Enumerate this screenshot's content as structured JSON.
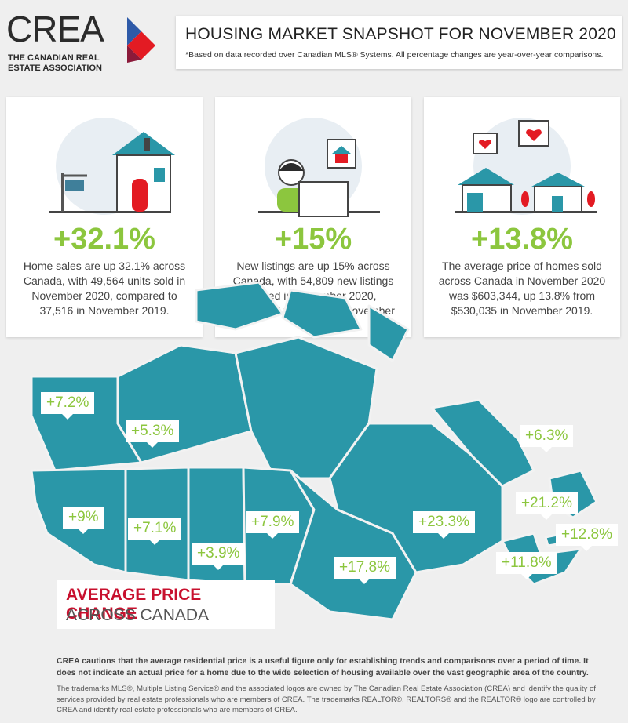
{
  "logo": {
    "name": "CREA",
    "subtitle": "THE CANADIAN REAL ESTATE ASSOCIATION",
    "colors": {
      "red": "#e31b23",
      "blue": "#2e5aa8"
    }
  },
  "header": {
    "title": "HOUSING MARKET SNAPSHOT FOR NOVEMBER 2020",
    "subtitle": "*Based on data recorded over Canadian MLS® Systems. All percentage changes are year-over-year comparisons."
  },
  "cards": [
    {
      "value": "+32.1%",
      "text": "Home sales are up 32.1% across Canada, with 49,564 units sold in November 2020, compared to 37,516 in November 2019."
    },
    {
      "value": "+15%",
      "text": "New listings are up 15% across Canada, with 54,809 new listings added in November 2020, compared to 47,676 in November 2019."
    },
    {
      "value": "+13.8%",
      "text": "The average price of homes sold across Canada in November 2020 was $603,344, up 13.8% from $530,035 in November 2019."
    }
  ],
  "map": {
    "color": "#2a97a8",
    "regions": [
      {
        "name": "Yukon",
        "value": "+7.2%"
      },
      {
        "name": "Northwest Territories",
        "value": "+5.3%"
      },
      {
        "name": "British Columbia",
        "value": "+9%"
      },
      {
        "name": "Alberta",
        "value": "+7.1%"
      },
      {
        "name": "Saskatchewan",
        "value": "+3.9%"
      },
      {
        "name": "Manitoba",
        "value": "+7.9%"
      },
      {
        "name": "Ontario",
        "value": "+17.8%"
      },
      {
        "name": "Quebec",
        "value": "+23.3%"
      },
      {
        "name": "Newfoundland and Labrador",
        "value": "+6.3%"
      },
      {
        "name": "New Brunswick",
        "value": "+21.2%"
      },
      {
        "name": "Prince Edward Island",
        "value": "+12.8%"
      },
      {
        "name": "Nova Scotia",
        "value": "+11.8%"
      }
    ]
  },
  "legend": {
    "line1": "AVERAGE PRICE CHANGE",
    "line2": "ACROSS CANADA"
  },
  "footer": {
    "caution": "CREA cautions that the average residential price is a useful figure only for establishing trends and comparisons over a period of time. It does not indicate an actual price for a home due to the wide selection of housing available over the vast geographic area of the country.",
    "trademarks": "The trademarks MLS®, Multiple Listing Service® and the associated logos are owned by The Canadian Real Estate Association (CREA) and identify the quality of services provided by real estate professionals who are members of CREA. The trademarks REALTOR®, REALTORS® and the REALTOR® logo are controlled by CREA and identify real estate professionals who are members of CREA."
  }
}
